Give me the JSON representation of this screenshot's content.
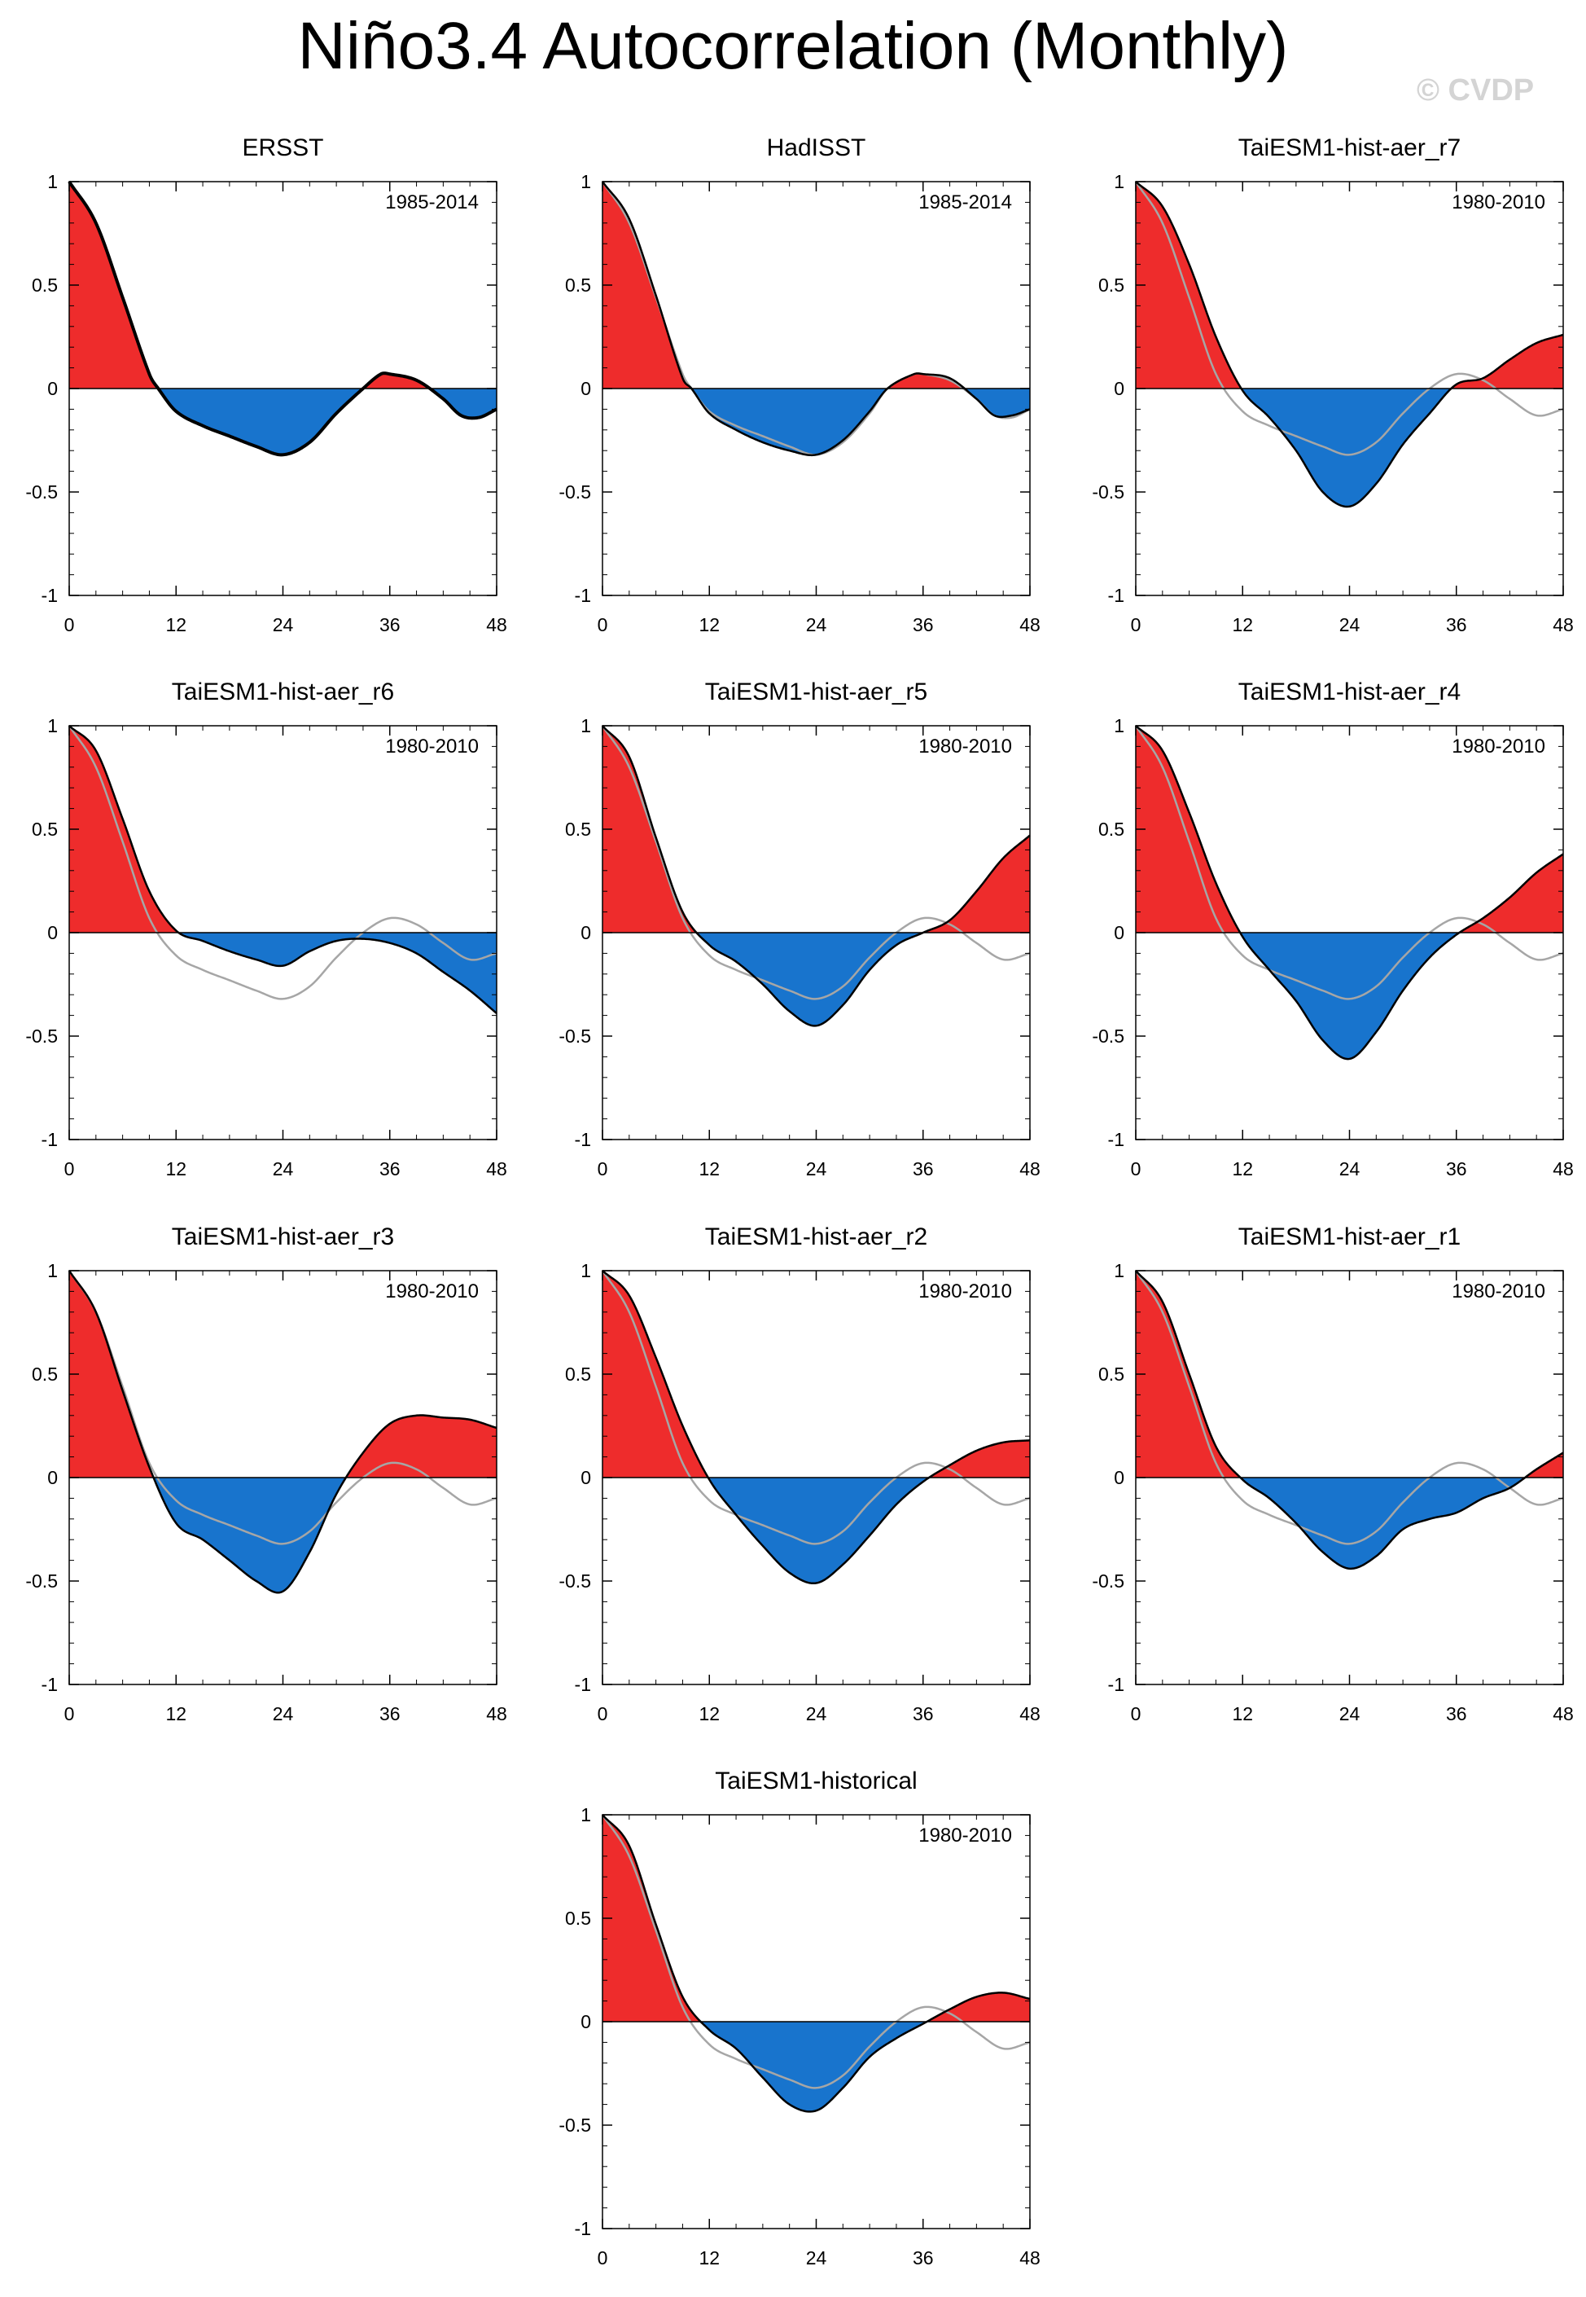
{
  "title": "Niño3.4 Autocorrelation (Monthly)",
  "watermark": "© CVDP",
  "colors": {
    "positive": "#ee2c2c",
    "negative": "#1874cd",
    "curve": "#000000",
    "reference": "#a6a6a6"
  },
  "chart_data": [
    {
      "type": "area",
      "title": "ERSST",
      "years": "1985-2014",
      "xlim": [
        0,
        48
      ],
      "ylim": [
        -1,
        1
      ],
      "xticks": [
        "0",
        "12",
        "24",
        "36",
        "48"
      ],
      "yticks": [
        "1",
        "0.5",
        "0",
        "-0.5",
        "-1"
      ],
      "lag": [
        0,
        3,
        6,
        9,
        10,
        12,
        15,
        18,
        21,
        24,
        27,
        30,
        33,
        35,
        36,
        39,
        42,
        44,
        46,
        48
      ],
      "values": [
        1,
        0.8,
        0.44,
        0.07,
        0,
        -0.11,
        -0.18,
        -0.23,
        -0.28,
        -0.32,
        -0.26,
        -0.12,
        0,
        0.07,
        0.07,
        0.04,
        -0.05,
        -0.13,
        -0.14,
        -0.1
      ],
      "reference": [
        1,
        0.8,
        0.44,
        0.07,
        0,
        -0.11,
        -0.18,
        -0.23,
        -0.28,
        -0.32,
        -0.26,
        -0.12,
        0,
        0.07,
        0.07,
        0.04,
        -0.05,
        -0.13,
        -0.14,
        -0.1
      ]
    },
    {
      "type": "area",
      "title": "HadISST",
      "years": "1985-2014",
      "xlim": [
        0,
        48
      ],
      "ylim": [
        -1,
        1
      ],
      "xticks": [
        "0",
        "12",
        "24",
        "36",
        "48"
      ],
      "yticks": [
        "1",
        "0.5",
        "0",
        "-0.5",
        "-1"
      ],
      "lag": [
        0,
        3,
        6,
        9,
        10,
        12,
        15,
        18,
        21,
        24,
        27,
        30,
        32,
        35,
        36,
        39,
        42,
        44,
        46,
        48
      ],
      "values": [
        1,
        0.82,
        0.45,
        0.05,
        0,
        -0.12,
        -0.2,
        -0.26,
        -0.3,
        -0.32,
        -0.25,
        -0.11,
        0,
        0.07,
        0.07,
        0.05,
        -0.05,
        -0.13,
        -0.13,
        -0.1
      ],
      "reference": [
        1,
        0.8,
        0.44,
        0.07,
        0,
        -0.11,
        -0.18,
        -0.23,
        -0.28,
        -0.32,
        -0.26,
        -0.12,
        0,
        0.07,
        0.07,
        0.04,
        -0.05,
        -0.13,
        -0.14,
        -0.1
      ]
    },
    {
      "type": "area",
      "title": "TaiESM1-hist-aer_r7",
      "years": "1980-2010",
      "xlim": [
        0,
        48
      ],
      "ylim": [
        -1,
        1
      ],
      "xticks": [
        "0",
        "12",
        "24",
        "36",
        "48"
      ],
      "yticks": [
        "1",
        "0.5",
        "0",
        "-0.5",
        "-1"
      ],
      "lag": [
        0,
        3,
        6,
        9,
        12,
        15,
        18,
        21,
        24,
        27,
        30,
        33,
        36,
        39,
        42,
        45,
        48
      ],
      "values": [
        1,
        0.88,
        0.6,
        0.25,
        -0.01,
        -0.14,
        -0.3,
        -0.5,
        -0.57,
        -0.46,
        -0.27,
        -0.12,
        0.02,
        0.05,
        0.14,
        0.22,
        0.26
      ],
      "reference": [
        1,
        0.8,
        0.44,
        0.07,
        -0.11,
        -0.18,
        -0.23,
        -0.28,
        -0.32,
        -0.26,
        -0.12,
        0,
        0.07,
        0.04,
        -0.05,
        -0.13,
        -0.1
      ]
    },
    {
      "type": "area",
      "title": "TaiESM1-hist-aer_r6",
      "years": "1980-2010",
      "xlim": [
        0,
        48
      ],
      "ylim": [
        -1,
        1
      ],
      "xticks": [
        "0",
        "12",
        "24",
        "36",
        "48"
      ],
      "yticks": [
        "1",
        "0.5",
        "0",
        "-0.5",
        "-1"
      ],
      "lag": [
        0,
        3,
        6,
        9,
        12,
        15,
        18,
        21,
        24,
        27,
        30,
        33,
        36,
        39,
        42,
        45,
        48
      ],
      "values": [
        1,
        0.88,
        0.55,
        0.2,
        0.01,
        -0.04,
        -0.09,
        -0.13,
        -0.16,
        -0.09,
        -0.04,
        -0.03,
        -0.05,
        -0.1,
        -0.19,
        -0.28,
        -0.39
      ],
      "reference": [
        1,
        0.8,
        0.44,
        0.07,
        -0.11,
        -0.18,
        -0.23,
        -0.28,
        -0.32,
        -0.26,
        -0.12,
        0,
        0.07,
        0.04,
        -0.05,
        -0.13,
        -0.1
      ]
    },
    {
      "type": "area",
      "title": "TaiESM1-hist-aer_r5",
      "years": "1980-2010",
      "xlim": [
        0,
        48
      ],
      "ylim": [
        -1,
        1
      ],
      "xticks": [
        "0",
        "12",
        "24",
        "36",
        "48"
      ],
      "yticks": [
        "1",
        "0.5",
        "0",
        "-0.5",
        "-1"
      ],
      "lag": [
        0,
        3,
        6,
        9,
        12,
        15,
        18,
        21,
        24,
        27,
        30,
        33,
        36,
        39,
        42,
        45,
        48
      ],
      "values": [
        1,
        0.85,
        0.46,
        0.1,
        -0.06,
        -0.14,
        -0.25,
        -0.38,
        -0.45,
        -0.35,
        -0.18,
        -0.06,
        0,
        0.06,
        0.2,
        0.36,
        0.47
      ],
      "reference": [
        1,
        0.8,
        0.44,
        0.07,
        -0.11,
        -0.18,
        -0.23,
        -0.28,
        -0.32,
        -0.26,
        -0.12,
        0,
        0.07,
        0.04,
        -0.05,
        -0.13,
        -0.1
      ]
    },
    {
      "type": "area",
      "title": "TaiESM1-hist-aer_r4",
      "years": "1980-2010",
      "xlim": [
        0,
        48
      ],
      "ylim": [
        -1,
        1
      ],
      "xticks": [
        "0",
        "12",
        "24",
        "36",
        "48"
      ],
      "yticks": [
        "1",
        "0.5",
        "0",
        "-0.5",
        "-1"
      ],
      "lag": [
        0,
        3,
        6,
        9,
        12,
        15,
        18,
        21,
        24,
        27,
        30,
        33,
        36,
        39,
        42,
        45,
        48
      ],
      "values": [
        1,
        0.88,
        0.58,
        0.24,
        -0.02,
        -0.18,
        -0.33,
        -0.52,
        -0.61,
        -0.48,
        -0.28,
        -0.12,
        -0.01,
        0.07,
        0.17,
        0.29,
        0.38
      ],
      "reference": [
        1,
        0.8,
        0.44,
        0.07,
        -0.11,
        -0.18,
        -0.23,
        -0.28,
        -0.32,
        -0.26,
        -0.12,
        0,
        0.07,
        0.04,
        -0.05,
        -0.13,
        -0.1
      ]
    },
    {
      "type": "area",
      "title": "TaiESM1-hist-aer_r3",
      "years": "1980-2010",
      "xlim": [
        0,
        48
      ],
      "ylim": [
        -1,
        1
      ],
      "xticks": [
        "0",
        "12",
        "24",
        "36",
        "48"
      ],
      "yticks": [
        "1",
        "0.5",
        "0",
        "-0.5",
        "-1"
      ],
      "lag": [
        0,
        3,
        6,
        9,
        12,
        15,
        18,
        21,
        24,
        27,
        30,
        33,
        36,
        39,
        42,
        45,
        48
      ],
      "values": [
        1,
        0.8,
        0.42,
        0.05,
        -0.22,
        -0.3,
        -0.4,
        -0.5,
        -0.55,
        -0.36,
        -0.08,
        0.12,
        0.26,
        0.3,
        0.29,
        0.28,
        0.24
      ],
      "reference": [
        1,
        0.8,
        0.44,
        0.07,
        -0.11,
        -0.18,
        -0.23,
        -0.28,
        -0.32,
        -0.26,
        -0.12,
        0,
        0.07,
        0.04,
        -0.05,
        -0.13,
        -0.1
      ]
    },
    {
      "type": "area",
      "title": "TaiESM1-hist-aer_r2",
      "years": "1980-2010",
      "xlim": [
        0,
        48
      ],
      "ylim": [
        -1,
        1
      ],
      "xticks": [
        "0",
        "12",
        "24",
        "36",
        "48"
      ],
      "yticks": [
        "1",
        "0.5",
        "0",
        "-0.5",
        "-1"
      ],
      "lag": [
        0,
        3,
        6,
        9,
        12,
        15,
        18,
        21,
        24,
        27,
        30,
        33,
        36,
        39,
        42,
        45,
        48
      ],
      "values": [
        1,
        0.88,
        0.58,
        0.25,
        -0.01,
        -0.18,
        -0.33,
        -0.46,
        -0.51,
        -0.42,
        -0.28,
        -0.13,
        -0.02,
        0.06,
        0.13,
        0.17,
        0.18
      ],
      "reference": [
        1,
        0.8,
        0.44,
        0.07,
        -0.11,
        -0.18,
        -0.23,
        -0.28,
        -0.32,
        -0.26,
        -0.12,
        0,
        0.07,
        0.04,
        -0.05,
        -0.13,
        -0.1
      ]
    },
    {
      "type": "area",
      "title": "TaiESM1-hist-aer_r1",
      "years": "1980-2010",
      "xlim": [
        0,
        48
      ],
      "ylim": [
        -1,
        1
      ],
      "xticks": [
        "0",
        "12",
        "24",
        "36",
        "48"
      ],
      "yticks": [
        "1",
        "0.5",
        "0",
        "-0.5",
        "-1"
      ],
      "lag": [
        0,
        3,
        6,
        9,
        12,
        15,
        18,
        21,
        24,
        27,
        30,
        33,
        36,
        39,
        42,
        45,
        48
      ],
      "values": [
        1,
        0.85,
        0.5,
        0.15,
        -0.01,
        -0.1,
        -0.22,
        -0.36,
        -0.44,
        -0.38,
        -0.25,
        -0.2,
        -0.17,
        -0.1,
        -0.05,
        0.04,
        0.12
      ],
      "reference": [
        1,
        0.8,
        0.44,
        0.07,
        -0.11,
        -0.18,
        -0.23,
        -0.28,
        -0.32,
        -0.26,
        -0.12,
        0,
        0.07,
        0.04,
        -0.05,
        -0.13,
        -0.1
      ]
    },
    {
      "type": "area",
      "title": "TaiESM1-historical",
      "years": "1980-2010",
      "xlim": [
        0,
        48
      ],
      "ylim": [
        -1,
        1
      ],
      "xticks": [
        "0",
        "12",
        "24",
        "36",
        "48"
      ],
      "yticks": [
        "1",
        "0.5",
        "0",
        "-0.5",
        "-1"
      ],
      "lag": [
        0,
        3,
        6,
        9,
        12,
        15,
        18,
        21,
        24,
        27,
        30,
        33,
        36,
        39,
        42,
        45,
        48
      ],
      "values": [
        1,
        0.85,
        0.47,
        0.12,
        -0.04,
        -0.13,
        -0.27,
        -0.4,
        -0.43,
        -0.32,
        -0.17,
        -0.08,
        -0.01,
        0.06,
        0.12,
        0.14,
        0.11
      ],
      "reference": [
        1,
        0.8,
        0.44,
        0.07,
        -0.11,
        -0.18,
        -0.23,
        -0.28,
        -0.32,
        -0.26,
        -0.12,
        0,
        0.07,
        0.04,
        -0.05,
        -0.13,
        -0.1
      ]
    }
  ]
}
